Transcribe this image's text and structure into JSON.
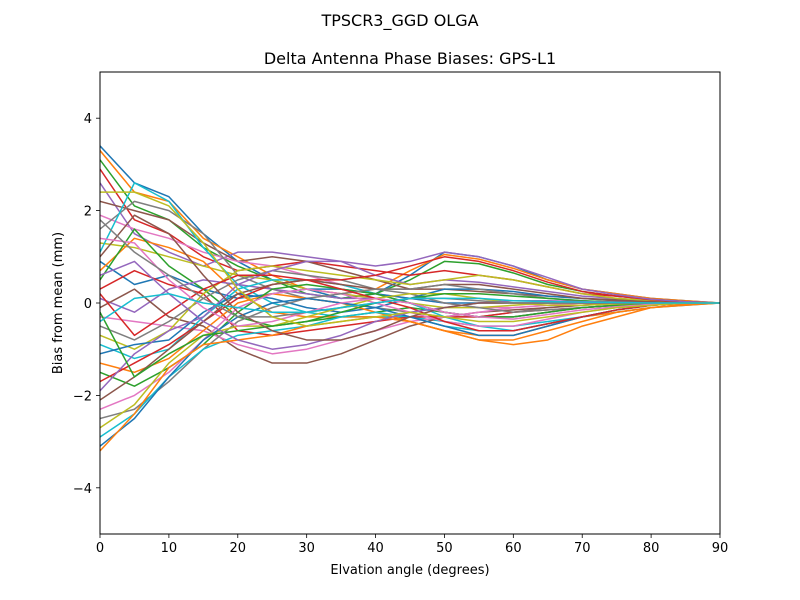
{
  "suptitle": "TPSCR3_GGD       OLGA",
  "chart_data": {
    "type": "line",
    "title": "Delta Antenna Phase Biases: GPS-L1",
    "xlabel": "Elvation angle (degrees)",
    "ylabel": "Bias from mean (mm)",
    "xlim": [
      0,
      90
    ],
    "ylim": [
      -5,
      5
    ],
    "xticks": [
      0,
      10,
      20,
      30,
      40,
      50,
      60,
      70,
      80,
      90
    ],
    "yticks": [
      -4,
      -2,
      0,
      2,
      4
    ],
    "ytick_labels": [
      "−4",
      "−2",
      "0",
      "2",
      "4"
    ],
    "grid": false,
    "legend": "none",
    "x": [
      0,
      5,
      10,
      15,
      20,
      25,
      30,
      35,
      40,
      45,
      50,
      55,
      60,
      65,
      70,
      75,
      80,
      85,
      90
    ],
    "colors": [
      "#1f77b4",
      "#ff7f0e",
      "#2ca02c",
      "#d62728",
      "#9467bd",
      "#8c564b",
      "#e377c2",
      "#7f7f7f",
      "#bcbd22",
      "#17becf"
    ],
    "series": [
      {
        "values": [
          3.4,
          2.6,
          2.3,
          1.5,
          0.9,
          0.5,
          0.3,
          0.1,
          0.2,
          0.6,
          1.1,
          1.0,
          0.8,
          0.5,
          0.3,
          0.2,
          0.1,
          0.05,
          0
        ]
      },
      {
        "values": [
          3.3,
          2.4,
          2.2,
          1.4,
          1.0,
          0.6,
          0.3,
          0.2,
          0.3,
          0.7,
          1.05,
          0.95,
          0.75,
          0.5,
          0.3,
          0.2,
          0.1,
          0.05,
          0
        ]
      },
      {
        "values": [
          3.1,
          2.1,
          1.8,
          1.2,
          0.8,
          0.5,
          0.2,
          0.1,
          0.2,
          0.5,
          0.9,
          0.85,
          0.65,
          0.4,
          0.25,
          0.15,
          0.08,
          0.03,
          0
        ]
      },
      {
        "values": [
          2.9,
          1.8,
          1.5,
          1.0,
          0.7,
          0.8,
          0.9,
          0.8,
          0.7,
          0.6,
          0.7,
          0.6,
          0.5,
          0.35,
          0.2,
          0.15,
          0.08,
          0.03,
          0
        ]
      },
      {
        "values": [
          2.6,
          1.5,
          1.1,
          0.8,
          1.1,
          1.1,
          1.0,
          0.9,
          0.6,
          0.4,
          0.5,
          0.45,
          0.35,
          0.25,
          0.15,
          0.1,
          0.05,
          0.02,
          0
        ]
      },
      {
        "values": [
          2.2,
          2.0,
          1.8,
          1.3,
          0.9,
          1.0,
          0.9,
          0.7,
          0.5,
          0.3,
          0.3,
          0.25,
          0.2,
          0.15,
          0.1,
          0.07,
          0.04,
          0.02,
          0
        ]
      },
      {
        "values": [
          1.9,
          1.6,
          1.4,
          1.1,
          0.9,
          0.8,
          0.6,
          0.4,
          0.2,
          0.1,
          0.0,
          -0.1,
          -0.1,
          -0.05,
          0.0,
          0.0,
          0.0,
          0.0,
          0
        ]
      },
      {
        "values": [
          1.6,
          2.2,
          2.0,
          1.5,
          0.6,
          0.3,
          0.1,
          0.0,
          -0.1,
          -0.2,
          -0.3,
          -0.3,
          -0.2,
          -0.1,
          -0.05,
          0.0,
          0.0,
          0.0,
          0
        ]
      },
      {
        "values": [
          1.3,
          1.2,
          1.0,
          0.8,
          0.6,
          0.5,
          0.3,
          0.2,
          0.1,
          0.0,
          -0.1,
          -0.1,
          -0.05,
          0.0,
          0.0,
          0.0,
          0.0,
          0.0,
          0
        ]
      },
      {
        "values": [
          1.1,
          2.6,
          2.2,
          1.2,
          0.4,
          0.0,
          -0.2,
          -0.3,
          -0.3,
          -0.3,
          -0.4,
          -0.5,
          -0.5,
          -0.4,
          -0.3,
          -0.2,
          -0.1,
          -0.05,
          0
        ]
      },
      {
        "values": [
          0.9,
          0.4,
          0.6,
          0.3,
          0.1,
          0.2,
          0.3,
          0.3,
          0.2,
          0.1,
          0.0,
          0.0,
          0.0,
          0.0,
          0.0,
          0.0,
          0.0,
          0.0,
          0
        ]
      },
      {
        "values": [
          0.7,
          1.4,
          1.2,
          0.9,
          0.2,
          -0.2,
          -0.3,
          -0.3,
          -0.3,
          -0.4,
          -0.6,
          -0.7,
          -0.7,
          -0.5,
          -0.3,
          -0.2,
          -0.1,
          -0.05,
          0
        ]
      },
      {
        "values": [
          0.5,
          1.6,
          0.8,
          0.3,
          -0.3,
          -0.5,
          -0.4,
          -0.3,
          -0.2,
          -0.1,
          -0.2,
          -0.3,
          -0.3,
          -0.2,
          -0.1,
          -0.05,
          0.0,
          0.0,
          0
        ]
      },
      {
        "values": [
          0.3,
          0.7,
          0.4,
          0.2,
          -0.6,
          -0.7,
          -0.6,
          -0.5,
          -0.4,
          -0.3,
          -0.3,
          -0.3,
          -0.2,
          -0.15,
          -0.1,
          -0.05,
          0.0,
          0.0,
          0
        ]
      },
      {
        "values": [
          0.1,
          -0.2,
          0.3,
          0.5,
          0.4,
          0.3,
          0.2,
          0.1,
          0.1,
          0.0,
          -0.2,
          -0.3,
          -0.3,
          -0.2,
          -0.1,
          -0.05,
          0.0,
          0.0,
          0
        ]
      },
      {
        "values": [
          -0.1,
          0.3,
          -0.3,
          -0.5,
          -1.0,
          -1.3,
          -1.3,
          -1.1,
          -0.8,
          -0.5,
          -0.3,
          -0.2,
          -0.15,
          -0.1,
          -0.05,
          0.0,
          0.0,
          0.0,
          0
        ]
      },
      {
        "values": [
          -0.3,
          -0.4,
          -0.5,
          -0.6,
          -0.9,
          -1.1,
          -1.0,
          -0.8,
          -0.6,
          -0.4,
          -0.3,
          -0.2,
          -0.1,
          -0.05,
          0.0,
          0.0,
          0.0,
          0.0,
          0
        ]
      },
      {
        "values": [
          -0.5,
          -0.8,
          -0.4,
          0.1,
          0.5,
          0.7,
          0.6,
          0.5,
          0.3,
          0.2,
          0.0,
          -0.1,
          -0.2,
          -0.15,
          -0.1,
          -0.05,
          0.0,
          0.0,
          0
        ]
      },
      {
        "values": [
          -0.7,
          -1.0,
          -0.6,
          0.2,
          0.7,
          0.8,
          0.7,
          0.6,
          0.5,
          0.4,
          0.5,
          0.6,
          0.5,
          0.35,
          0.2,
          0.1,
          0.05,
          0.02,
          0
        ]
      },
      {
        "values": [
          -0.9,
          -1.2,
          -1.0,
          -0.3,
          0.3,
          0.5,
          0.5,
          0.4,
          0.2,
          0.0,
          -0.3,
          -0.5,
          -0.6,
          -0.45,
          -0.3,
          -0.15,
          -0.05,
          0.0,
          0
        ]
      },
      {
        "values": [
          -1.1,
          -0.9,
          -0.8,
          -0.2,
          0.2,
          0.1,
          -0.1,
          -0.2,
          -0.1,
          0.1,
          0.3,
          0.3,
          0.25,
          0.15,
          0.1,
          0.05,
          0.0,
          0.0,
          0
        ]
      },
      {
        "values": [
          -1.3,
          -1.5,
          -1.2,
          -0.6,
          0.0,
          0.2,
          0.1,
          0.0,
          -0.2,
          -0.4,
          -0.6,
          -0.8,
          -0.8,
          -0.6,
          -0.4,
          -0.2,
          -0.1,
          -0.03,
          0
        ]
      },
      {
        "values": [
          -1.5,
          -1.8,
          -1.4,
          -0.9,
          -0.2,
          0.3,
          0.4,
          0.3,
          0.2,
          0.0,
          -0.2,
          -0.3,
          -0.3,
          -0.2,
          -0.1,
          -0.05,
          0.0,
          0.0,
          0
        ]
      },
      {
        "values": [
          -1.7,
          -1.3,
          -0.9,
          -0.4,
          0.1,
          0.4,
          0.5,
          0.5,
          0.6,
          0.8,
          1.0,
          0.9,
          0.7,
          0.45,
          0.25,
          0.15,
          0.07,
          0.02,
          0
        ]
      },
      {
        "values": [
          -1.9,
          -1.1,
          -0.6,
          -0.3,
          0.4,
          0.7,
          0.9,
          0.9,
          0.8,
          0.9,
          1.1,
          1.0,
          0.8,
          0.55,
          0.3,
          0.18,
          0.08,
          0.03,
          0
        ]
      },
      {
        "values": [
          -2.1,
          -1.6,
          -1.0,
          -0.4,
          0.2,
          0.4,
          0.5,
          0.4,
          0.3,
          0.3,
          0.4,
          0.4,
          0.3,
          0.2,
          0.1,
          0.05,
          0.03,
          0.0,
          0
        ]
      },
      {
        "values": [
          -2.3,
          -2.0,
          -1.5,
          -0.8,
          -0.1,
          0.2,
          0.3,
          0.2,
          0.0,
          -0.2,
          -0.4,
          -0.5,
          -0.5,
          -0.35,
          -0.2,
          -0.1,
          -0.05,
          0.0,
          0
        ]
      },
      {
        "values": [
          -2.5,
          -2.3,
          -1.7,
          -1.0,
          -0.4,
          -0.1,
          0.1,
          0.2,
          0.3,
          0.3,
          0.4,
          0.3,
          0.2,
          0.1,
          0.05,
          0.0,
          0.0,
          0.0,
          0
        ]
      },
      {
        "values": [
          -2.7,
          -2.2,
          -1.3,
          -0.7,
          -0.5,
          -0.5,
          -0.3,
          -0.1,
          0.1,
          0.2,
          0.2,
          0.1,
          0.0,
          -0.05,
          -0.05,
          -0.02,
          0.0,
          0.0,
          0
        ]
      },
      {
        "values": [
          -2.9,
          -2.4,
          -1.6,
          -1.0,
          -0.7,
          -0.6,
          -0.5,
          -0.3,
          -0.2,
          -0.3,
          -0.5,
          -0.6,
          -0.6,
          -0.45,
          -0.3,
          -0.15,
          -0.05,
          0.0,
          0
        ]
      },
      {
        "values": [
          -3.1,
          -2.5,
          -1.6,
          -0.8,
          -0.3,
          0.0,
          0.1,
          0.0,
          -0.1,
          -0.3,
          -0.5,
          -0.7,
          -0.7,
          -0.5,
          -0.3,
          -0.15,
          -0.05,
          0.0,
          0
        ]
      },
      {
        "values": [
          -3.2,
          -2.4,
          -1.4,
          -0.9,
          -0.8,
          -0.7,
          -0.5,
          -0.4,
          -0.3,
          -0.4,
          -0.6,
          -0.8,
          -0.9,
          -0.8,
          -0.5,
          -0.3,
          -0.1,
          -0.03,
          0
        ]
      },
      {
        "values": [
          -0.2,
          -1.6,
          -1.1,
          -0.7,
          -0.6,
          -0.5,
          -0.4,
          -0.2,
          0.0,
          0.1,
          0.2,
          0.2,
          0.15,
          0.1,
          0.05,
          0.02,
          0.0,
          0.0,
          0
        ]
      },
      {
        "values": [
          0.2,
          -0.7,
          -0.2,
          0.3,
          0.6,
          0.6,
          0.5,
          0.3,
          0.1,
          -0.1,
          -0.4,
          -0.6,
          -0.6,
          -0.45,
          -0.3,
          -0.15,
          -0.05,
          0.0,
          0
        ]
      },
      {
        "values": [
          0.6,
          0.9,
          0.2,
          -0.4,
          -0.8,
          -1.0,
          -0.9,
          -0.7,
          -0.4,
          -0.2,
          -0.1,
          0.0,
          0.05,
          0.05,
          0.03,
          0.02,
          0.0,
          0.0,
          0
        ]
      },
      {
        "values": [
          1.0,
          1.9,
          1.5,
          0.6,
          -0.2,
          -0.6,
          -0.8,
          -0.8,
          -0.6,
          -0.3,
          -0.1,
          0.0,
          0.0,
          0.0,
          0.0,
          0.0,
          0.0,
          0.0,
          0
        ]
      },
      {
        "values": [
          1.4,
          1.3,
          0.5,
          -0.1,
          -0.5,
          -0.4,
          -0.2,
          0.0,
          0.1,
          0.0,
          -0.2,
          -0.3,
          -0.35,
          -0.25,
          -0.15,
          -0.08,
          -0.03,
          0.0,
          0
        ]
      },
      {
        "values": [
          1.8,
          1.1,
          0.6,
          0.1,
          -0.3,
          -0.3,
          -0.2,
          -0.1,
          0.0,
          0.1,
          0.1,
          0.05,
          0.0,
          0.0,
          0.0,
          0.0,
          0.0,
          0.0,
          0
        ]
      },
      {
        "values": [
          2.4,
          2.4,
          2.1,
          1.3,
          0.3,
          -0.3,
          -0.5,
          -0.4,
          -0.3,
          -0.2,
          -0.3,
          -0.4,
          -0.4,
          -0.3,
          -0.2,
          -0.1,
          -0.05,
          0.0,
          0
        ]
      },
      {
        "values": [
          -0.4,
          0.1,
          0.2,
          0.0,
          -0.1,
          -0.2,
          -0.2,
          -0.1,
          0.0,
          0.1,
          0.1,
          0.1,
          0.05,
          0.03,
          0.02,
          0.01,
          0.0,
          0.0,
          0
        ]
      }
    ]
  }
}
